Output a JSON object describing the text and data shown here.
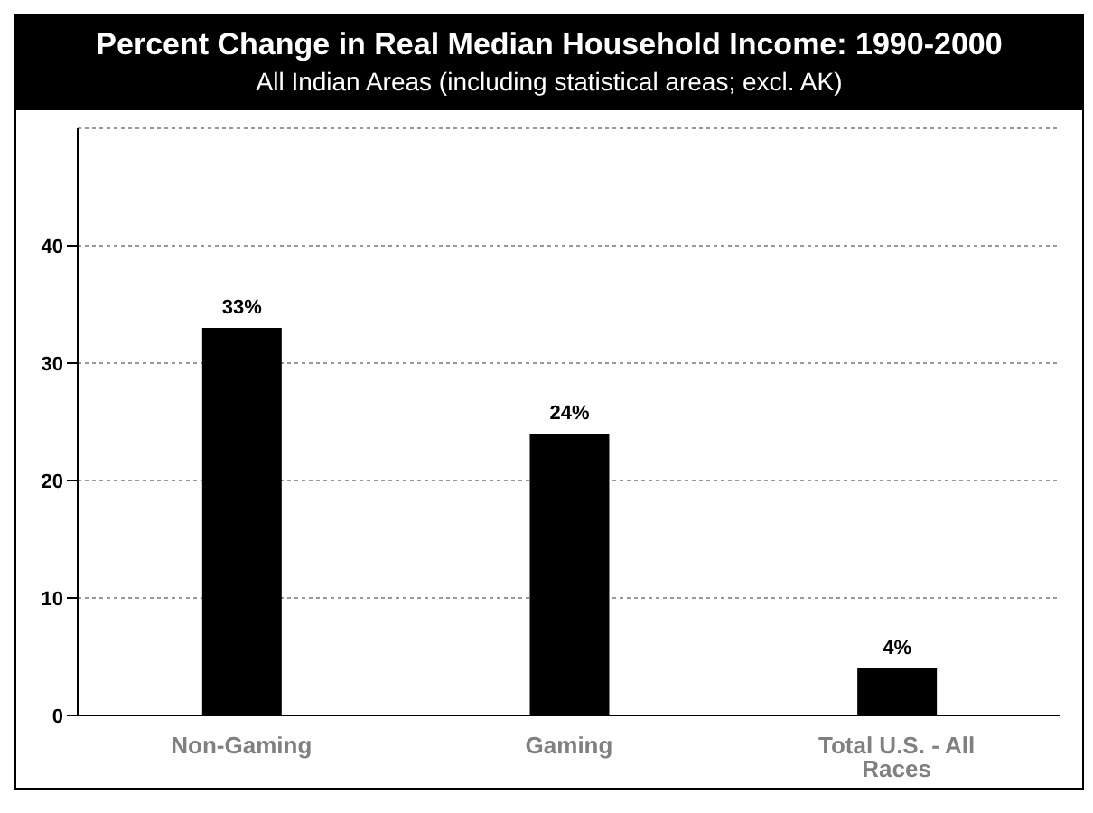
{
  "chart_data": {
    "type": "bar",
    "title": "Percent Change in Real Median Household Income: 1990-2000",
    "subtitle": "All Indian Areas (including statistical areas; excl. AK)",
    "categories": [
      "Non-Gaming",
      "Gaming",
      "Total U.S. - All Races"
    ],
    "values": [
      33,
      24,
      4
    ],
    "color": "#000000",
    "value_labels": [
      "33%",
      "24%",
      "4%"
    ],
    "ylim": [
      0,
      50
    ],
    "yticks": [
      0,
      10,
      20,
      30,
      40
    ],
    "grid": "y"
  }
}
